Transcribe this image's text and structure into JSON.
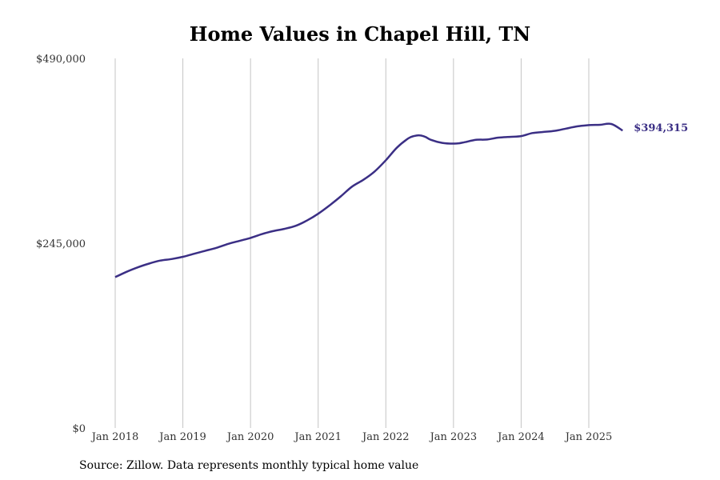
{
  "source": "Source: Zillow. Data represents monthly typical home value",
  "chart_data": {
    "type": "line",
    "title": "Home Values in Chapel Hill, TN",
    "xlabel": "",
    "ylabel": "",
    "ylim": [
      0,
      490000
    ],
    "x_tick_labels": [
      "Jan 2018",
      "Jan 2019",
      "Jan 2020",
      "Jan 2021",
      "Jan 2022",
      "Jan 2023",
      "Jan 2024",
      "Jan 2025"
    ],
    "y_tick_labels": [
      "$0",
      "$245,000",
      "$490,000"
    ],
    "y_ticks": [
      0,
      245000,
      490000
    ],
    "grid": "vertical",
    "color": "#3b2f85",
    "end_label": "$394,315",
    "series": [
      {
        "x": [
          "2018-01",
          "2018-03",
          "2018-05",
          "2018-07",
          "2018-09",
          "2018-11",
          "2019-01",
          "2019-03",
          "2019-05",
          "2019-07",
          "2019-09",
          "2019-11",
          "2020-01",
          "2020-03",
          "2020-05",
          "2020-07",
          "2020-09",
          "2020-11",
          "2021-01",
          "2021-03",
          "2021-05",
          "2021-07",
          "2021-09",
          "2021-11",
          "2022-01",
          "2022-03",
          "2022-05",
          "2022-06",
          "2022-07",
          "2022-08",
          "2022-09",
          "2022-11",
          "2023-01",
          "2023-02",
          "2023-03",
          "2023-05",
          "2023-07",
          "2023-09",
          "2023-11",
          "2024-01",
          "2024-03",
          "2024-05",
          "2024-07",
          "2024-09",
          "2024-11",
          "2025-01",
          "2025-03",
          "2025-05",
          "2025-07"
        ],
        "y": [
          200000,
          207000,
          213000,
          218000,
          222000,
          224000,
          227000,
          231000,
          235000,
          239000,
          244000,
          248000,
          252000,
          257000,
          261000,
          264000,
          268000,
          275000,
          284000,
          295000,
          307000,
          320000,
          329000,
          340000,
          355000,
          372000,
          384000,
          387000,
          388000,
          386000,
          382000,
          378000,
          377000,
          377500,
          379000,
          382000,
          382500,
          385000,
          386000,
          387000,
          391000,
          392500,
          394000,
          397000,
          400000,
          401500,
          402000,
          403000,
          394315
        ]
      }
    ]
  }
}
